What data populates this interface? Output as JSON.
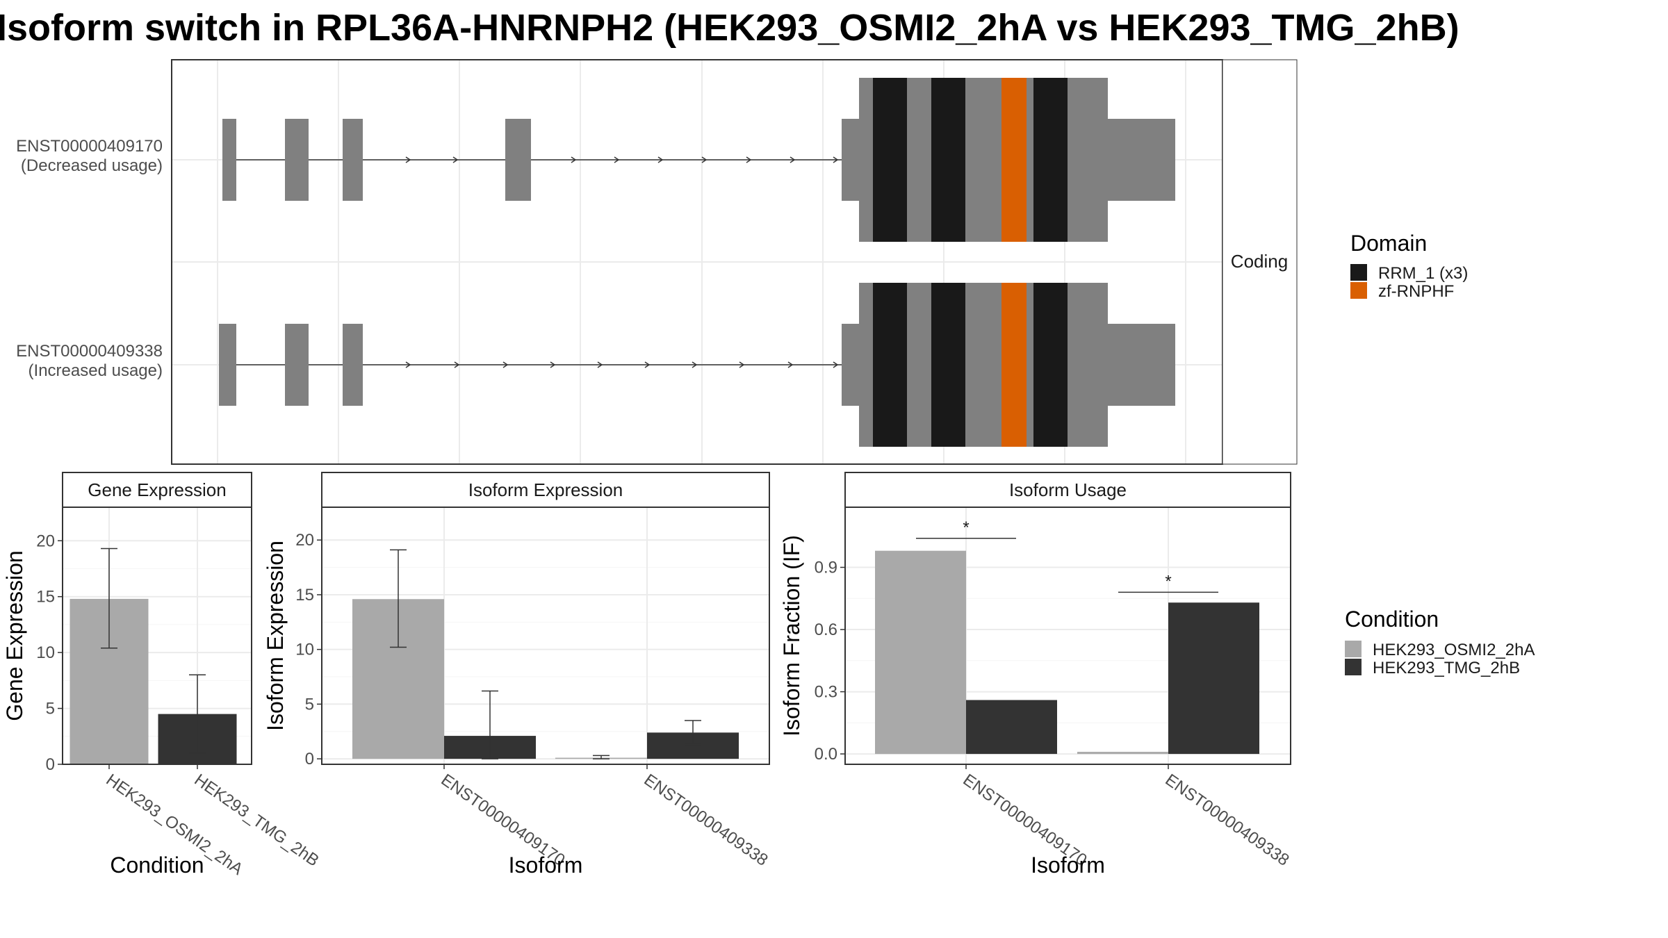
{
  "title": "Isoform switch in RPL36A-HNRNPH2 (HEK293_OSMI2_2hA vs HEK293_TMG_2hB)",
  "colors": {
    "exon": "#808080",
    "intron": "#333333",
    "rrm": "#191919",
    "zf": "#D95F02",
    "cond_a": "#A9A9A9",
    "cond_b": "#333333",
    "panel_border": "#333333",
    "grid": "#EBEBEB"
  },
  "transcripts": {
    "strip": "Coding",
    "rows": [
      {
        "id": "ENST00000409170",
        "usage": "(Decreased usage)"
      },
      {
        "id": "ENST00000409338",
        "usage": "(Increased usage)"
      }
    ]
  },
  "legend_domain": {
    "title": "Domain",
    "items": [
      {
        "label": "RRM_1 (x3)",
        "color": "#191919"
      },
      {
        "label": "zf-RNPHF",
        "color": "#D95F02"
      }
    ]
  },
  "legend_condition": {
    "title": "Condition",
    "items": [
      {
        "label": "HEK293_OSMI2_2hA",
        "color": "#A9A9A9"
      },
      {
        "label": "HEK293_TMG_2hB",
        "color": "#333333"
      }
    ]
  },
  "chart_data": [
    {
      "type": "bar",
      "panel": "Gene Expression",
      "categories": [
        "HEK293_OSMI2_2hA",
        "HEK293_TMG_2hB"
      ],
      "values": [
        14.8,
        4.5
      ],
      "error_low": [
        10.4,
        1.0
      ],
      "error_high": [
        19.3,
        8.0
      ],
      "xlabel": "Condition",
      "ylabel": "Gene Expression",
      "ylim": [
        0,
        23
      ],
      "yticks": [
        0,
        5,
        10,
        15,
        20
      ],
      "grid": true
    },
    {
      "type": "bar",
      "panel": "Isoform Expression",
      "categories": [
        "ENST00000409170",
        "ENST00000409338"
      ],
      "series": [
        {
          "name": "HEK293_OSMI2_2hA",
          "values": [
            14.6,
            0.1
          ],
          "error_low": [
            10.2,
            0.0
          ],
          "error_high": [
            19.1,
            0.3
          ]
        },
        {
          "name": "HEK293_TMG_2hB",
          "values": [
            2.1,
            2.4
          ],
          "error_low": [
            0.0,
            1.3
          ],
          "error_high": [
            6.2,
            3.5
          ]
        }
      ],
      "xlabel": "Isoform",
      "ylabel": "Isoform Expression",
      "ylim": [
        -0.5,
        23
      ],
      "yticks": [
        0,
        5,
        10,
        15,
        20
      ],
      "grid": true
    },
    {
      "type": "bar",
      "panel": "Isoform Usage",
      "categories": [
        "ENST00000409170",
        "ENST00000409338"
      ],
      "series": [
        {
          "name": "HEK293_OSMI2_2hA",
          "values": [
            0.98,
            0.01
          ]
        },
        {
          "name": "HEK293_TMG_2hB",
          "values": [
            0.26,
            0.73
          ]
        }
      ],
      "significance": [
        {
          "category": "ENST00000409170",
          "label": "*",
          "y": 1.04
        },
        {
          "category": "ENST00000409338",
          "label": "*",
          "y": 0.78
        }
      ],
      "xlabel": "Isoform",
      "ylabel": "Isoform Fraction (IF)",
      "ylim": [
        -0.05,
        1.19
      ],
      "yticks": [
        "0.0",
        "0.3",
        "0.6",
        "0.9"
      ],
      "grid": true
    }
  ]
}
